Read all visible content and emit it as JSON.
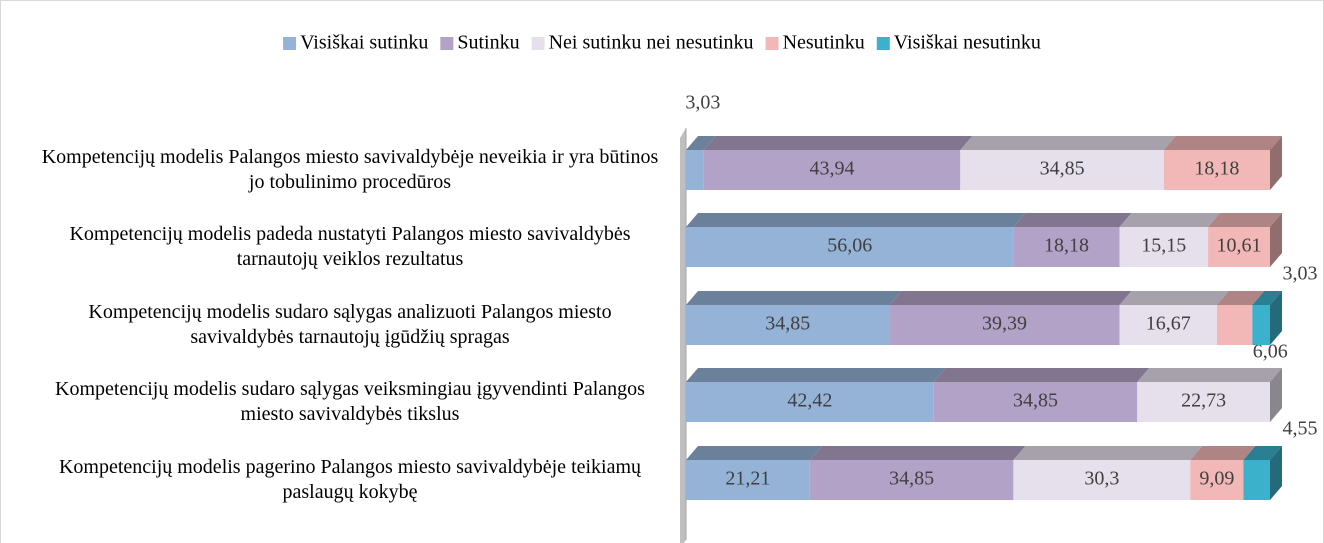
{
  "chart_data": {
    "type": "stacked_bar_horizontal_3d",
    "categories": [
      "Kompetencijų modelis Palangos miesto savivaldybėje neveikia ir yra būtinos jo tobulinimo procedūros",
      "Kompetencijų modelis padeda nustatyti Palangos miesto savivaldybės tarnautojų veiklos rezultatus",
      "Kompetencijų modelis sudaro sąlygas analizuoti Palangos miesto savivaldybės tarnautojų įgūdžių spragas",
      "Kompetencijų modelis sudaro sąlygas veiksmingiau įgyvendinti Palangos miesto savivaldybės tikslus",
      "Kompetencijų modelis pagerino Palangos miesto savivaldybėje teikiamų paslaugų kokybę"
    ],
    "series": [
      {
        "name": "Visiškai sutinku",
        "color": "#95b3d7",
        "values": [
          3.03,
          56.06,
          34.85,
          42.42,
          21.21
        ],
        "value_labels": [
          "3,03",
          "56,06",
          "34,85",
          "42,42",
          "21,21"
        ]
      },
      {
        "name": "Sutinku",
        "color": "#b3a2c7",
        "values": [
          43.94,
          18.18,
          39.39,
          34.85,
          34.85
        ],
        "value_labels": [
          "43,94",
          "18,18",
          "39,39",
          "34,85",
          "34,85"
        ]
      },
      {
        "name": "Nei sutinku nei nesutinku",
        "color": "#e6e0ec",
        "values": [
          34.85,
          15.15,
          16.67,
          22.73,
          30.3
        ],
        "value_labels": [
          "34,85",
          "15,15",
          "16,67",
          "22,73",
          "30,3"
        ]
      },
      {
        "name": "Nesutinku",
        "color": "#f2b8b8",
        "values": [
          18.18,
          10.61,
          6.06,
          null,
          9.09
        ],
        "value_labels": [
          "18,18",
          "10,61",
          "6,06",
          null,
          "9,09"
        ]
      },
      {
        "name": "Visiškai nesutinku",
        "color": "#3cb1cc",
        "values": [
          null,
          null,
          3.03,
          null,
          4.55
        ],
        "value_labels": [
          null,
          null,
          "3,03",
          null,
          "4,55"
        ]
      }
    ],
    "xlim": [
      0,
      100
    ],
    "legend": "top"
  }
}
